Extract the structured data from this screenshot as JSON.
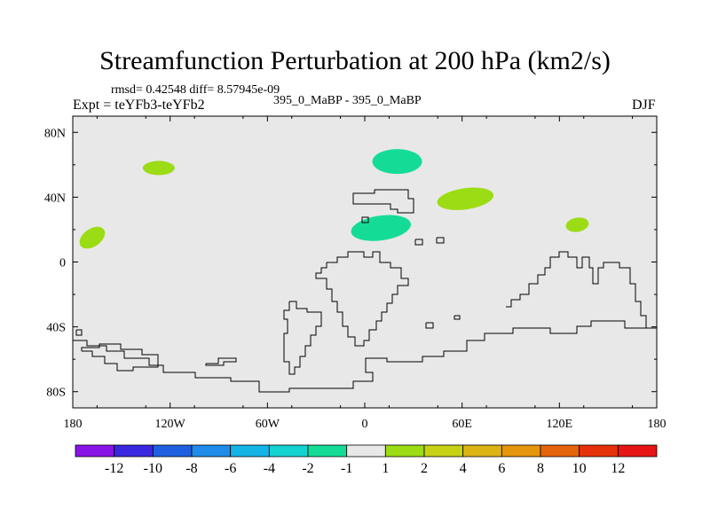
{
  "chart_data": {
    "type": "map-contour",
    "title": "Streamfunction Perturbation at 200 hPa (km2/s)",
    "stats_line": "rmsd= 0.42548 diff= 8.57945e-09",
    "left_label": "Expt = teYFb3-teYFb2",
    "center_label": "395_0_MaBP - 395_0_MaBP",
    "right_label": "DJF",
    "x_ticks": [
      "180",
      "120W",
      "60W",
      "0",
      "60E",
      "120E",
      "180"
    ],
    "y_ticks": [
      "80N",
      "40N",
      "0",
      "40S",
      "80S"
    ],
    "lon_range": [
      -180,
      180
    ],
    "lat_range": [
      -90,
      90
    ],
    "colorbar": {
      "colors": [
        "#8a14e8",
        "#3a28e0",
        "#1e60e0",
        "#1e8ce8",
        "#14b4e6",
        "#14d2d2",
        "#14dc96",
        "#e8e8e8",
        "#9bdc14",
        "#c8d214",
        "#dcb414",
        "#e6960a",
        "#e6640a",
        "#e6320a",
        "#e61414"
      ],
      "labels": [
        "-12",
        "-10",
        "-8",
        "-6",
        "-4",
        "-2",
        "-1",
        "1",
        "2",
        "4",
        "6",
        "8",
        "10",
        "12"
      ]
    },
    "anomalies": [
      {
        "name": "positive-anomaly-west-pacific",
        "lon": -168,
        "lat": 15,
        "color": "#9bdc14"
      },
      {
        "name": "positive-anomaly-north-pacific",
        "lon": -127,
        "lat": 58,
        "color": "#9bdc14"
      },
      {
        "name": "negative-anomaly-north-africa",
        "lon": 10,
        "lat": 21,
        "color": "#14dc96"
      },
      {
        "name": "negative-anomaly-europe",
        "lon": 20,
        "lat": 62,
        "color": "#14dc96"
      },
      {
        "name": "positive-anomaly-central-asia",
        "lon": 62,
        "lat": 39,
        "color": "#9bdc14"
      },
      {
        "name": "positive-anomaly-east-asia",
        "lon": 131,
        "lat": 23,
        "color": "#9bdc14"
      }
    ]
  }
}
